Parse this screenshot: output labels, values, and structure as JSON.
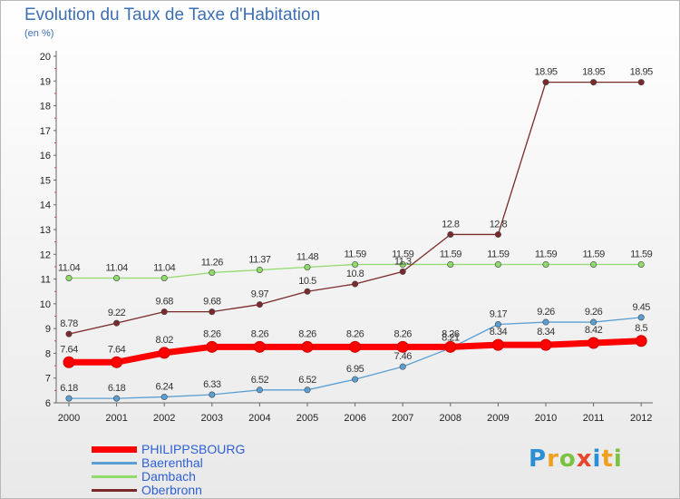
{
  "header": {
    "title": "Evolution du Taux de Taxe d'Habitation",
    "subtitle": "(en %)"
  },
  "logo": {
    "text": "Proxiti",
    "letters": [
      "P",
      "r",
      "o",
      "x",
      "i",
      "t",
      "i"
    ],
    "colors": [
      "#2b8fd6",
      "#f0a020",
      "#7cc242",
      "#e8452c",
      "#2b8fd6",
      "#f0a020",
      "#7cc242"
    ]
  },
  "chart_data": {
    "type": "line",
    "x": [
      2000,
      2001,
      2002,
      2003,
      2004,
      2005,
      2006,
      2007,
      2008,
      2009,
      2010,
      2011,
      2012
    ],
    "ylim": [
      6,
      20
    ],
    "yticks": [
      6,
      7,
      8,
      9,
      10,
      11,
      12,
      13,
      14,
      15,
      16,
      17,
      18,
      19,
      20
    ],
    "grid": false,
    "legend_position": "bottom-left",
    "series": [
      {
        "name": "Dambach",
        "color": "#8fdc6a",
        "values": [
          11.04,
          11.04,
          11.04,
          11.26,
          11.37,
          11.48,
          11.59,
          11.59,
          11.59,
          11.59,
          11.59,
          11.59,
          11.59
        ],
        "labels": [
          "11.04",
          "11.04",
          "11.04",
          "11.26",
          "11.37",
          "11.48",
          "11.59",
          "11.59",
          "11.59",
          "11.59",
          "11.59",
          "11.59",
          "11.59"
        ]
      },
      {
        "name": "Oberbronn",
        "color": "#7a2a2a",
        "values": [
          8.78,
          9.22,
          9.68,
          9.68,
          9.97,
          10.5,
          10.8,
          11.3,
          12.8,
          12.8,
          18.95,
          18.95,
          18.95
        ],
        "labels": [
          "8.78",
          "9.22",
          "9.68",
          "9.68",
          "9.97",
          "10.5",
          "10.8",
          "11.3",
          "12.8",
          "12.8",
          "18.95",
          "18.95",
          "18.95"
        ]
      },
      {
        "name": "Baerenthal",
        "color": "#5a9fd4",
        "values": [
          6.18,
          6.18,
          6.24,
          6.33,
          6.52,
          6.52,
          6.95,
          7.46,
          8.21,
          9.17,
          9.26,
          9.26,
          9.45
        ],
        "labels": [
          "6.18",
          "6.18",
          "6.24",
          "6.33",
          "6.52",
          "6.52",
          "6.95",
          "7.46",
          "8.21",
          "9.17",
          "9.26",
          "9.26",
          "9.45"
        ]
      },
      {
        "name": "PHILIPPSBOURG",
        "color": "#ff0000",
        "values": [
          7.64,
          7.64,
          8.02,
          8.26,
          8.26,
          8.26,
          8.26,
          8.26,
          8.26,
          8.34,
          8.34,
          8.42,
          8.5
        ],
        "labels": [
          "7.64",
          "7.64",
          "8.02",
          "8.26",
          "8.26",
          "8.26",
          "8.26",
          "8.26",
          "8.26",
          "8.34",
          "8.34",
          "8.42",
          "8.5"
        ]
      }
    ],
    "legend": [
      {
        "name": "PHILIPPSBOURG",
        "color": "#ff0000",
        "thickness": 7
      },
      {
        "name": "Baerenthal",
        "color": "#5a9fd4",
        "thickness": 2
      },
      {
        "name": "Dambach",
        "color": "#8fdc6a",
        "thickness": 2
      },
      {
        "name": "Oberbronn",
        "color": "#7a2a2a",
        "thickness": 2
      }
    ]
  }
}
